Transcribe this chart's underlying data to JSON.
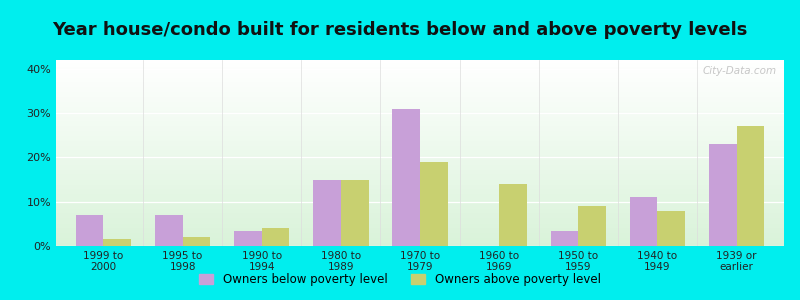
{
  "title": "Year house/condo built for residents below and above poverty levels",
  "categories": [
    "1999 to\n2000",
    "1995 to\n1998",
    "1990 to\n1994",
    "1980 to\n1989",
    "1970 to\n1979",
    "1960 to\n1969",
    "1950 to\n1959",
    "1940 to\n1949",
    "1939 or\nearlier"
  ],
  "below_poverty": [
    7.0,
    7.0,
    3.5,
    15.0,
    31.0,
    0.0,
    3.5,
    11.0,
    23.0
  ],
  "above_poverty": [
    1.5,
    2.0,
    4.0,
    15.0,
    19.0,
    14.0,
    9.0,
    8.0,
    27.0
  ],
  "below_color": "#c8a0d8",
  "above_color": "#c8d070",
  "ylim": [
    0,
    42
  ],
  "yticks": [
    0,
    10,
    20,
    30,
    40
  ],
  "ytick_labels": [
    "0%",
    "10%",
    "20%",
    "30%",
    "40%"
  ],
  "outer_background": "#00eeee",
  "title_fontsize": 13,
  "legend_below_label": "Owners below poverty level",
  "legend_above_label": "Owners above poverty level",
  "bar_width": 0.35,
  "watermark": "City-Data.com"
}
